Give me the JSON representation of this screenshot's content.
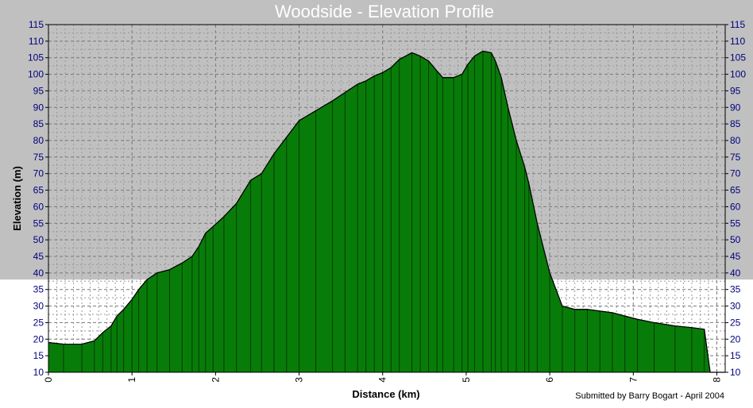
{
  "chart_data": {
    "type": "area",
    "title": "Woodside - Elevation Profile",
    "xlabel": "Distance (km)",
    "ylabel": "Elevation (m)",
    "credit": "Submitted by Barry Bogart - April 2004",
    "xlim": [
      0,
      8.1
    ],
    "ylim": [
      10,
      115
    ],
    "x_ticks": [
      0,
      1,
      2,
      3,
      4,
      5,
      6,
      7,
      8
    ],
    "y_ticks": [
      10,
      15,
      20,
      25,
      30,
      35,
      40,
      45,
      50,
      55,
      60,
      65,
      70,
      75,
      80,
      85,
      90,
      95,
      100,
      105,
      110,
      115
    ],
    "grid": true,
    "fill_color": "#087c08",
    "band_color": "#c0c0c0",
    "band_below": 38,
    "series": [
      {
        "x": [
          0,
          0.18,
          0.4,
          0.55,
          0.65,
          0.75,
          0.82,
          0.9,
          1.0,
          1.08,
          1.18,
          1.3,
          1.45,
          1.6,
          1.72,
          1.8,
          1.88,
          1.97,
          2.1,
          2.25,
          2.42,
          2.55,
          2.7,
          2.85,
          3.0,
          3.2,
          3.4,
          3.55,
          3.7,
          3.8,
          3.9,
          4.0,
          4.1,
          4.2,
          4.35,
          4.45,
          4.55,
          4.65,
          4.72,
          4.85,
          4.95,
          5.02,
          5.1,
          5.2,
          5.3,
          5.35,
          5.42,
          5.5,
          5.6,
          5.7,
          5.75,
          5.85,
          6.0,
          6.15,
          6.3,
          6.45,
          6.6,
          6.75,
          6.9,
          7.05,
          7.25,
          7.5,
          7.7,
          7.85,
          7.92,
          8.1
        ],
        "y": [
          19,
          18.5,
          18.5,
          19.5,
          22,
          24,
          27,
          29,
          32,
          35,
          38,
          40,
          41,
          43,
          45,
          48,
          52,
          54,
          57,
          61,
          68,
          70,
          76,
          81,
          86,
          89,
          92,
          94.5,
          97,
          98,
          99.5,
          100.5,
          102,
          104.5,
          106.5,
          105.5,
          104,
          101,
          99,
          99,
          100,
          103,
          105.5,
          107,
          106.5,
          104,
          99,
          90,
          80,
          72,
          67,
          55,
          40,
          30,
          29,
          29,
          28.5,
          28,
          27,
          26,
          25,
          24,
          23.5,
          23,
          10,
          10
        ]
      }
    ]
  }
}
